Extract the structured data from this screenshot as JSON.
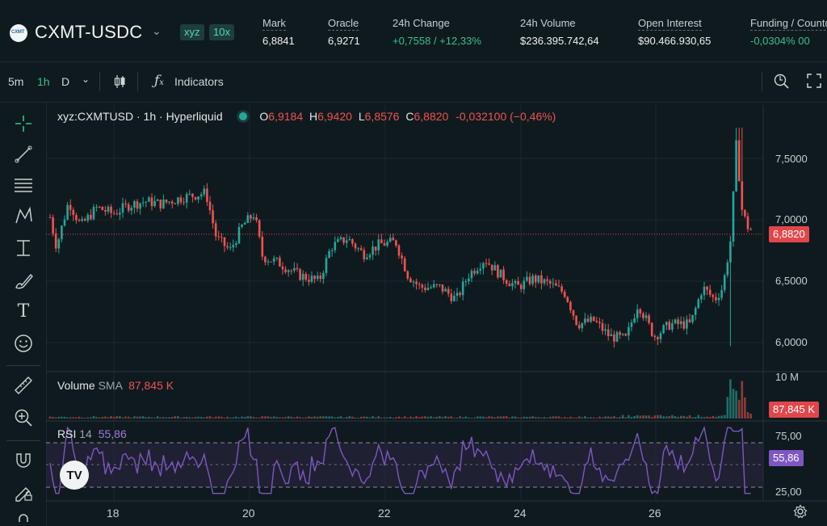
{
  "header": {
    "pair": "CXMT-USDC",
    "logo_text": "CXMT",
    "tags": [
      "xyz",
      "10x"
    ],
    "stats": [
      {
        "label": "Mark",
        "value": "6,8841"
      },
      {
        "label": "Oracle",
        "value": "6,9271"
      },
      {
        "label": "24h Change",
        "value": "+0,7558 / +12,33%"
      },
      {
        "label": "24h Volume",
        "value": "$236.395.742,64"
      },
      {
        "label": "Open Interest",
        "value": "$90.466.930,65"
      },
      {
        "label": "Funding / Countdown",
        "value": "-0,0304%  00"
      }
    ]
  },
  "toolbar": {
    "intervals": [
      "5m",
      "1h",
      "D"
    ],
    "active_interval": "1h",
    "indicators_label": "Indicators"
  },
  "legend": {
    "symbol": "xyz:CXMTUSD · 1h · Hyperliquid",
    "open_label": "O",
    "open": "6,9184",
    "high_label": "H",
    "high": "6,9420",
    "low_label": "L",
    "low": "6,8576",
    "close_label": "C",
    "close": "6,8820",
    "change": "-0,032100 (−0,46%)"
  },
  "volume_legend": {
    "label": "Volume",
    "sma": "SMA",
    "value": "87,845 K"
  },
  "rsi_legend": {
    "label": "RSI",
    "period": "14",
    "value": "55,86"
  },
  "axis": {
    "price_ticks": [
      "7,5000",
      "7,0000",
      "6,5000",
      "6,0000"
    ],
    "volume_tick": "10 M",
    "rsi_ticks": [
      "75,00",
      "25,00"
    ],
    "x_ticks": [
      "18",
      "20",
      "22",
      "24",
      "26"
    ]
  },
  "badges": {
    "price": "6,8820",
    "volume": "87,845 K",
    "rsi": "55,86"
  },
  "colors": {
    "up": "#26a69a",
    "down": "#ef5350",
    "rsi": "#7e57c2",
    "background": "#0f1a1f"
  },
  "chart_data": {
    "type": "candlestick",
    "price_range": [
      5.9,
      7.85
    ],
    "last_price": 6.882,
    "rsi_last": 55.86,
    "volume_last": "87,845 K"
  }
}
